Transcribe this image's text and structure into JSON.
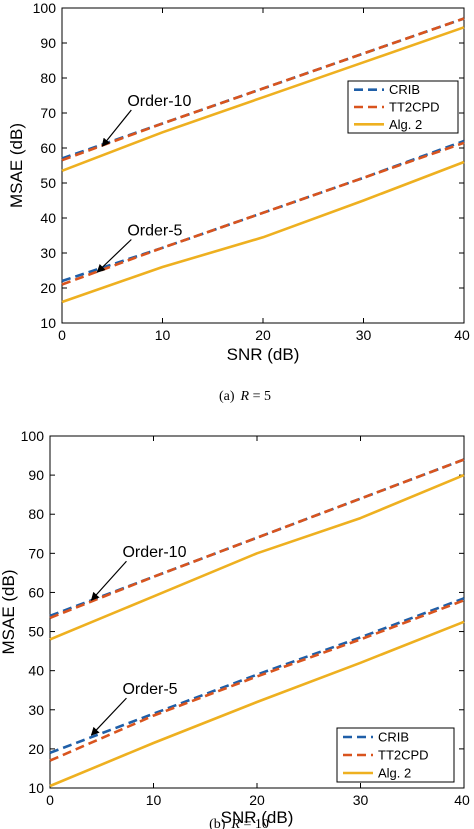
{
  "colors": {
    "crib": "#1f5fa8",
    "tt2cpd": "#d9541e",
    "alg2": "#eeb020"
  },
  "chart_data": [
    {
      "type": "line",
      "caption": "(a) R = 5",
      "caption_prefix": "(a)",
      "caption_var": "R",
      "caption_rest": " = 5",
      "xlabel": "SNR (dB)",
      "ylabel": "MSAE (dB)",
      "xlim": [
        0,
        40
      ],
      "ylim": [
        10,
        100
      ],
      "xticks": [
        "0",
        "10",
        "20",
        "30",
        "40"
      ],
      "yticks": [
        "10",
        "20",
        "30",
        "40",
        "50",
        "60",
        "70",
        "80",
        "90",
        "100"
      ],
      "legend_position": "right",
      "legend": [
        "CRIB",
        "TT2CPD",
        "Alg. 2"
      ],
      "series": [
        {
          "name": "CRIB",
          "x": [
            0,
            10,
            20,
            30,
            40
          ],
          "values": [
            57,
            67,
            77,
            87,
            97
          ]
        },
        {
          "name": "TT2CPD",
          "x": [
            0,
            10,
            20,
            30,
            40
          ],
          "values": [
            56.5,
            67,
            77,
            87,
            97
          ]
        },
        {
          "name": "Alg. 2",
          "x": [
            0,
            10,
            20,
            30,
            40
          ],
          "values": [
            53.5,
            64.5,
            74.5,
            84.5,
            94.5
          ]
        },
        {
          "name": "CRIB",
          "x": [
            0,
            10,
            20,
            30,
            40
          ],
          "values": [
            22,
            31.5,
            41.5,
            51.5,
            62
          ]
        },
        {
          "name": "TT2CPD",
          "x": [
            0,
            10,
            20,
            30,
            40
          ],
          "values": [
            21,
            31.5,
            41.5,
            51.5,
            61.5
          ]
        },
        {
          "name": "Alg. 2",
          "x": [
            0,
            10,
            20,
            30,
            40
          ],
          "values": [
            16,
            26,
            34.5,
            45,
            56
          ]
        }
      ],
      "annotations": [
        {
          "text": "Order-10",
          "x": 4,
          "y": 60.5,
          "text_x": 6.5,
          "text_y": 72
        },
        {
          "text": "Order-5",
          "x": 3.5,
          "y": 24.5,
          "text_x": 6.5,
          "text_y": 35
        }
      ]
    },
    {
      "type": "line",
      "caption": "(b) R = 10",
      "caption_prefix": "(b)",
      "caption_var": "R",
      "caption_rest": " = 10",
      "xlabel": "SNR (dB)",
      "ylabel": "MSAE (dB)",
      "xlim": [
        0,
        40
      ],
      "ylim": [
        10,
        100
      ],
      "xticks": [
        "0",
        "10",
        "20",
        "30",
        "40"
      ],
      "yticks": [
        "10",
        "20",
        "30",
        "40",
        "50",
        "60",
        "70",
        "80",
        "90",
        "100"
      ],
      "legend_position": "bottom-right",
      "legend": [
        "CRIB",
        "TT2CPD",
        "Alg. 2"
      ],
      "series": [
        {
          "name": "CRIB",
          "x": [
            0,
            10,
            20,
            30,
            40
          ],
          "values": [
            54,
            64,
            74,
            84,
            94
          ]
        },
        {
          "name": "TT2CPD",
          "x": [
            0,
            10,
            20,
            30,
            40
          ],
          "values": [
            53.5,
            64,
            74,
            84,
            94
          ]
        },
        {
          "name": "Alg. 2",
          "x": [
            0,
            10,
            20,
            30,
            40
          ],
          "values": [
            48,
            59,
            70,
            79,
            90
          ]
        },
        {
          "name": "CRIB",
          "x": [
            0,
            10,
            20,
            30,
            40
          ],
          "values": [
            19,
            29,
            39,
            48.5,
            58.5
          ]
        },
        {
          "name": "TT2CPD",
          "x": [
            0,
            10,
            20,
            30,
            40
          ],
          "values": [
            17,
            28.5,
            38.5,
            48,
            58
          ]
        },
        {
          "name": "Alg. 2",
          "x": [
            0,
            10,
            20,
            30,
            40
          ],
          "values": [
            10.5,
            21.5,
            32,
            42,
            52.5
          ]
        }
      ],
      "annotations": [
        {
          "text": "Order-10",
          "x": 4,
          "y": 58,
          "text_x": 7,
          "text_y": 69
        },
        {
          "text": "Order-5",
          "x": 4,
          "y": 23.5,
          "text_x": 7,
          "text_y": 34
        }
      ]
    }
  ]
}
